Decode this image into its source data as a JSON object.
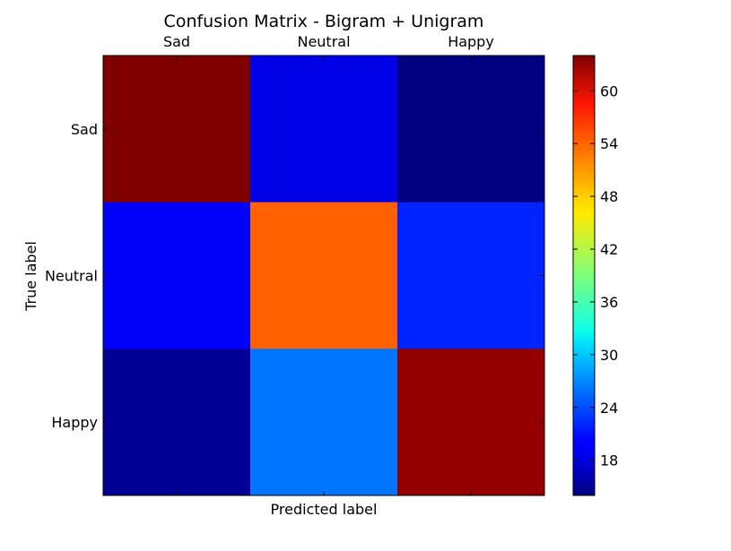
{
  "chart_data": {
    "type": "heatmap",
    "title": "Confusion Matrix - Bigram + Unigram",
    "xlabel": "Predicted label",
    "ylabel": "True label",
    "x_categories": [
      "Sad",
      "Neutral",
      "Happy"
    ],
    "y_categories": [
      "Sad",
      "Neutral",
      "Happy"
    ],
    "values": [
      [
        64,
        19,
        14
      ],
      [
        20,
        53,
        22
      ],
      [
        15,
        26,
        63
      ]
    ],
    "colormap": "jet",
    "color_range": [
      14,
      64
    ],
    "colorbar_ticks": [
      "18",
      "24",
      "30",
      "36",
      "42",
      "48",
      "54",
      "60"
    ],
    "colorbar_tick_values": [
      18,
      24,
      30,
      36,
      42,
      48,
      54,
      60
    ],
    "x_tick_position": "top",
    "grid": false,
    "legend": "colorbar-right"
  }
}
